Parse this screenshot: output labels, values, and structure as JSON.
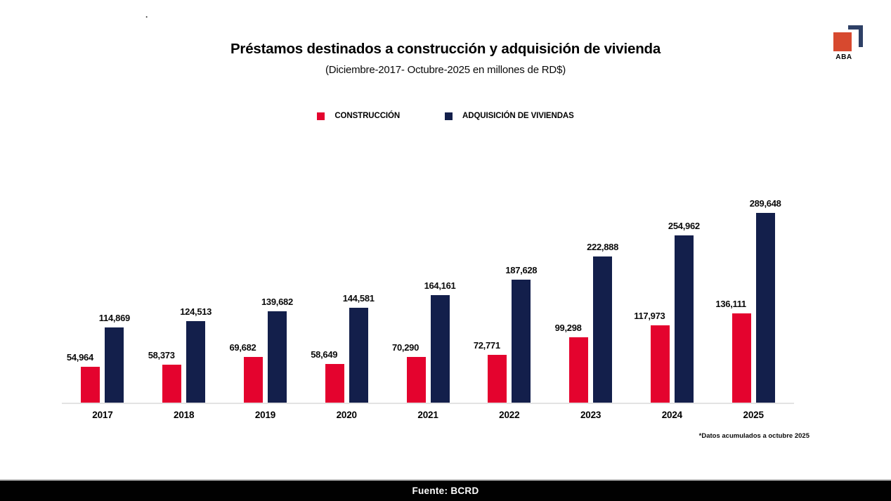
{
  "meta": {
    "dot": "."
  },
  "logo": {
    "text": "ABA",
    "square_color": "#D7492F",
    "bracket_color": "#2E4066"
  },
  "header": {
    "title": "Préstamos destinados a construcción y adquisición de vivienda",
    "subtitle": "(Diciembre-2017- Octubre-2025 en millones de RD$)"
  },
  "legend": [
    {
      "label": "CONSTRUCCIÓN",
      "color": "#E4032E"
    },
    {
      "label": "ADQUISICIÓN DE VIVIENDAS",
      "color": "#131F4B"
    }
  ],
  "chart_data": {
    "type": "bar",
    "title": "Préstamos destinados a construcción y adquisición de vivienda",
    "subtitle": "(Diciembre-2017- Octubre-2025 en millones de RD$)",
    "xlabel": "",
    "ylabel": "millones de RD$",
    "ylim": [
      0,
      289648
    ],
    "grid": false,
    "legend_position": "top",
    "categories": [
      "2017",
      "2018",
      "2019",
      "2020",
      "2021",
      "2022",
      "2023",
      "2024",
      "2025"
    ],
    "series": [
      {
        "name": "CONSTRUCCIÓN",
        "color": "#E4032E",
        "values": [
          54964,
          58373,
          69682,
          58649,
          70290,
          72771,
          99298,
          117973,
          136111
        ],
        "value_labels": [
          "54,964",
          "58,373",
          "69,682",
          "58,649",
          "70,290",
          "72,771",
          "99,298",
          "117,973",
          "136,111"
        ]
      },
      {
        "name": "ADQUISICIÓN DE VIVIENDAS",
        "color": "#131F4B",
        "values": [
          114869,
          124513,
          139682,
          144581,
          164161,
          187628,
          222888,
          254962,
          289648
        ],
        "value_labels": [
          "114,869",
          "124,513",
          "139,682",
          "144,581",
          "164,161",
          "187,628",
          "222,888",
          "254,962",
          "289,648"
        ]
      }
    ]
  },
  "footnote": "*Datos acumulados a octubre 2025",
  "footer": {
    "source_label": "Fuente: BCRD"
  }
}
